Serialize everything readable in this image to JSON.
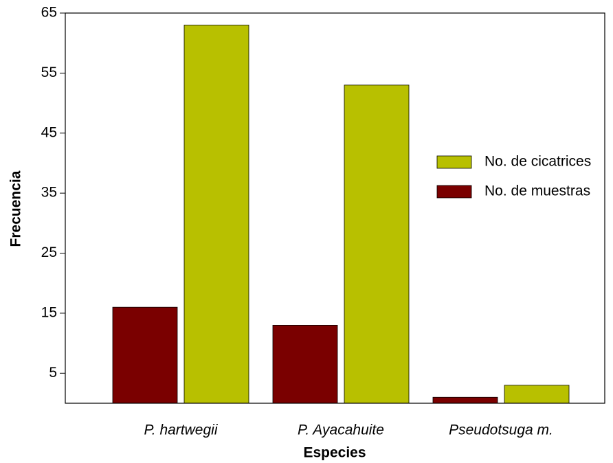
{
  "chart_data": {
    "type": "bar",
    "x_label": "Especies",
    "y_label": "Frecuencia",
    "categories": [
      "P. hartwegii",
      "P. Ayacahuite",
      "Pseudotsuga m."
    ],
    "series": [
      {
        "name": "No. de muestras",
        "color": "#7a0000",
        "values": [
          16,
          13,
          1
        ]
      },
      {
        "name": "No. de cicatrices",
        "color": "#b8c000",
        "values": [
          63,
          53,
          3
        ]
      }
    ],
    "ylim": [
      0,
      65
    ],
    "yticks": [
      5,
      15,
      25,
      35,
      45,
      55,
      65
    ],
    "legend": "right"
  }
}
